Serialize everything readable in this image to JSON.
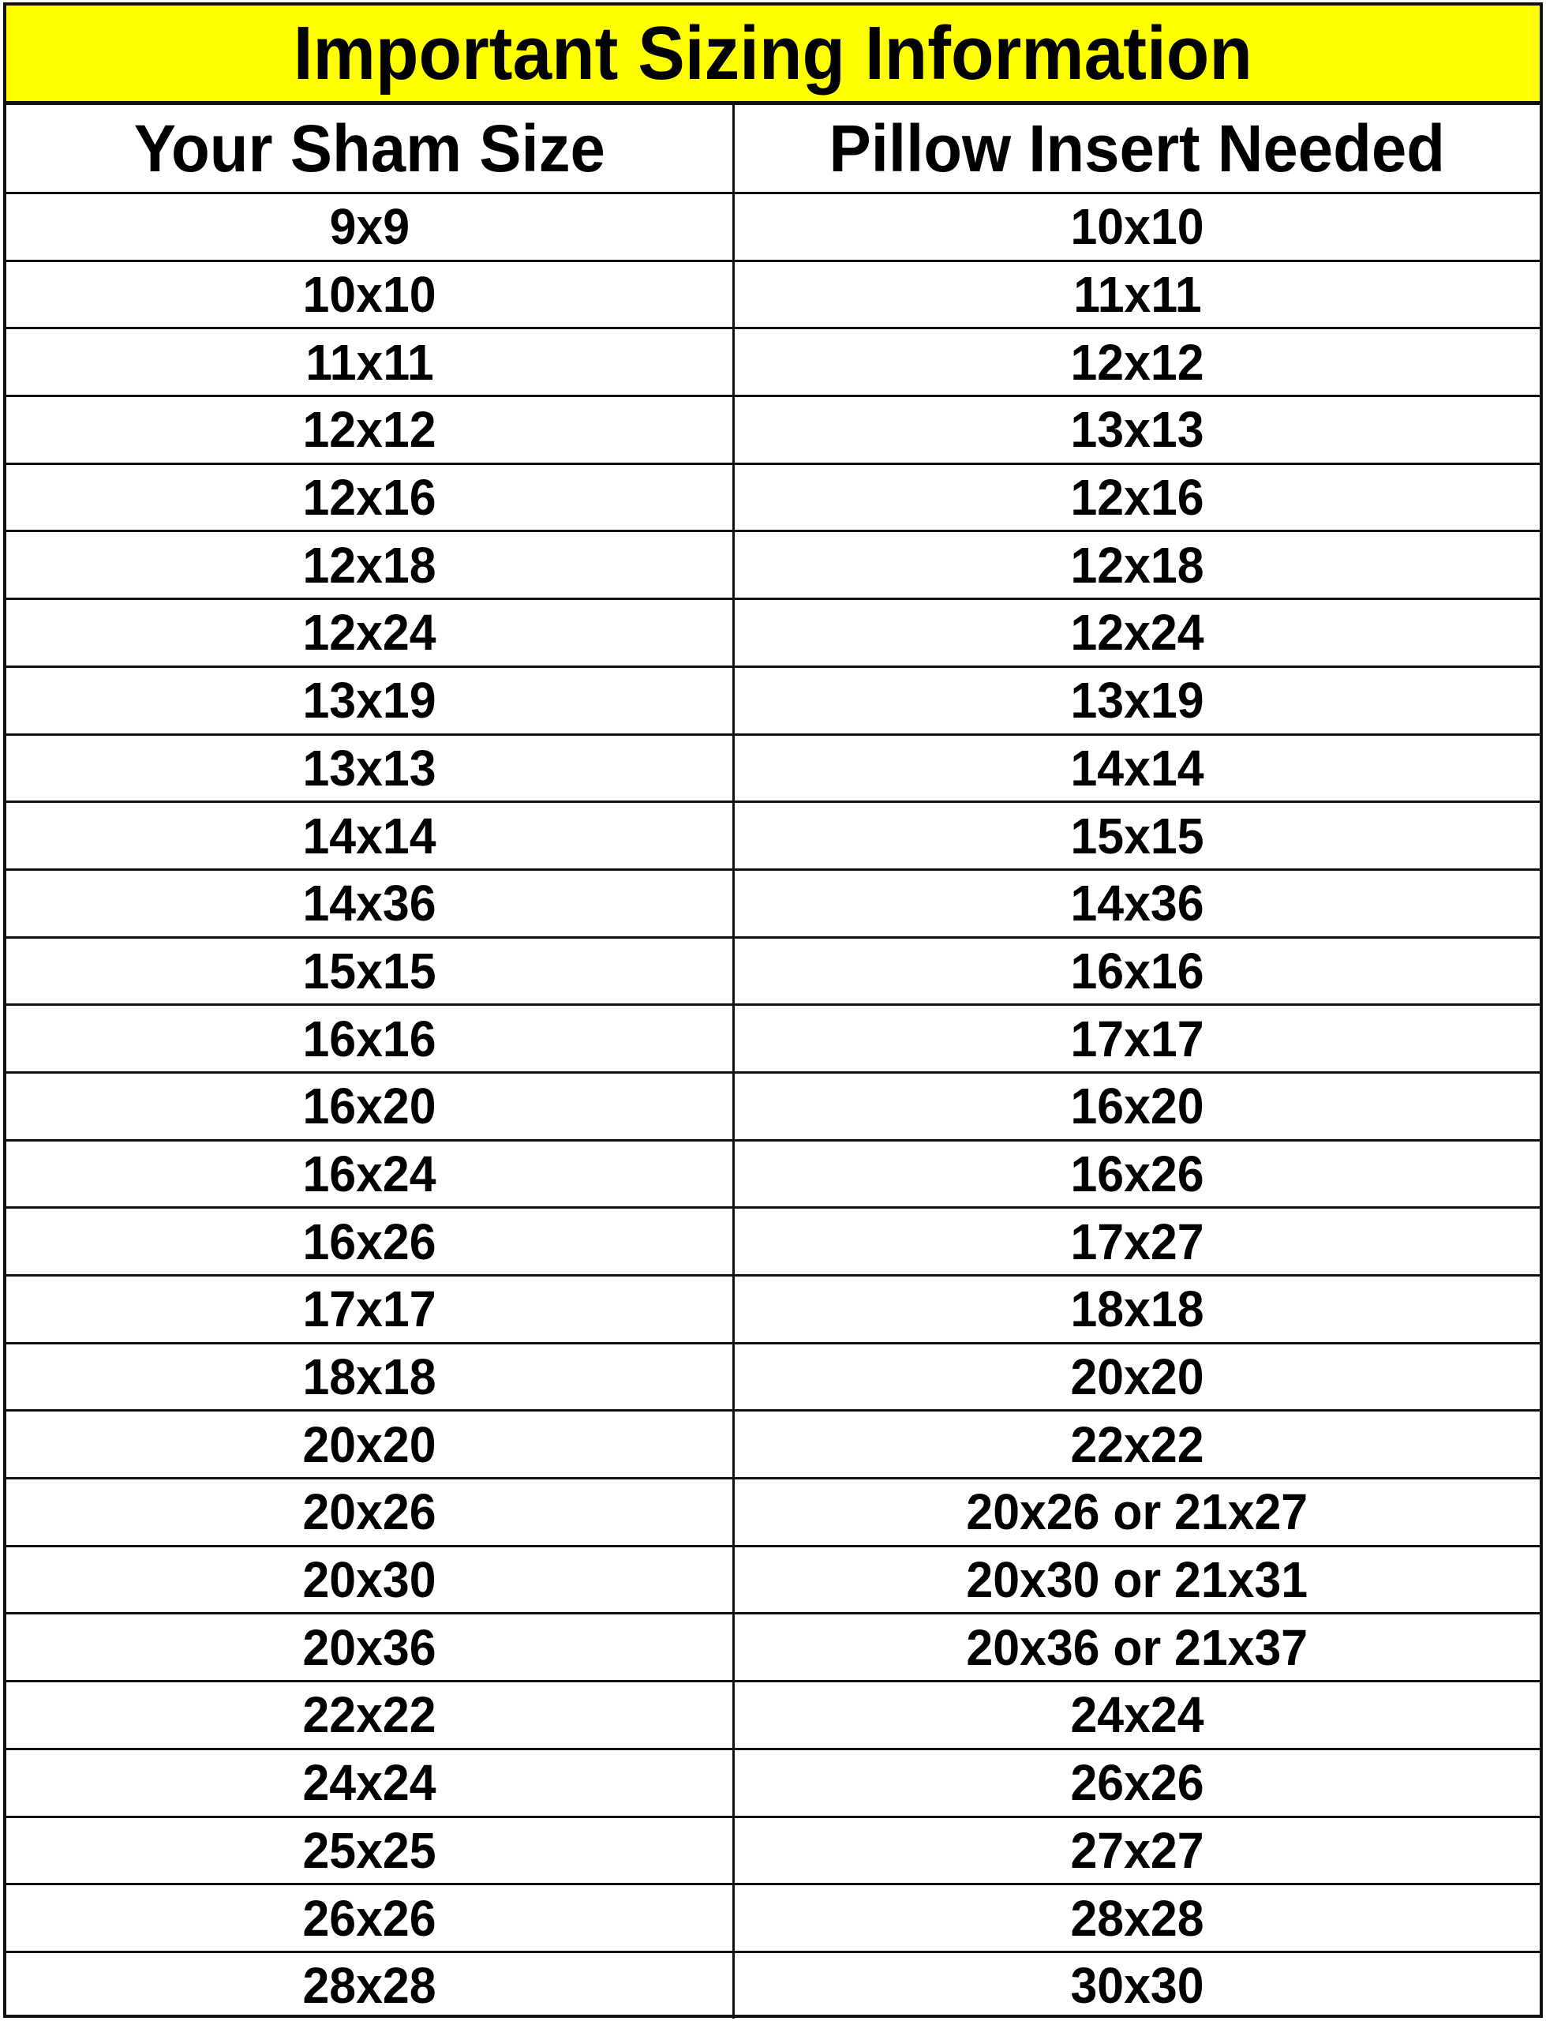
{
  "title": "Important Sizing Information",
  "columns": [
    "Your Sham Size",
    "Pillow Insert Needed"
  ],
  "rows": [
    [
      "9x9",
      "10x10"
    ],
    [
      "10x10",
      "11x11"
    ],
    [
      "11x11",
      "12x12"
    ],
    [
      "12x12",
      "13x13"
    ],
    [
      "12x16",
      "12x16"
    ],
    [
      "12x18",
      "12x18"
    ],
    [
      "12x24",
      "12x24"
    ],
    [
      "13x19",
      "13x19"
    ],
    [
      "13x13",
      "14x14"
    ],
    [
      "14x14",
      "15x15"
    ],
    [
      "14x36",
      "14x36"
    ],
    [
      "15x15",
      "16x16"
    ],
    [
      "16x16",
      "17x17"
    ],
    [
      "16x20",
      "16x20"
    ],
    [
      "16x24",
      "16x26"
    ],
    [
      "16x26",
      "17x27"
    ],
    [
      "17x17",
      "18x18"
    ],
    [
      "18x18",
      "20x20"
    ],
    [
      "20x20",
      "22x22"
    ],
    [
      "20x26",
      "20x26 or 21x27"
    ],
    [
      "20x30",
      "20x30 or 21x31"
    ],
    [
      "20x36",
      "20x36 or 21x37"
    ],
    [
      "22x22",
      "24x24"
    ],
    [
      "24x24",
      "26x26"
    ],
    [
      "25x25",
      "27x27"
    ],
    [
      "26x26",
      "28x28"
    ],
    [
      "28x28",
      "30x30"
    ]
  ],
  "colors": {
    "title_background": "#ffff00",
    "text": "#000000",
    "border": "#111111"
  }
}
